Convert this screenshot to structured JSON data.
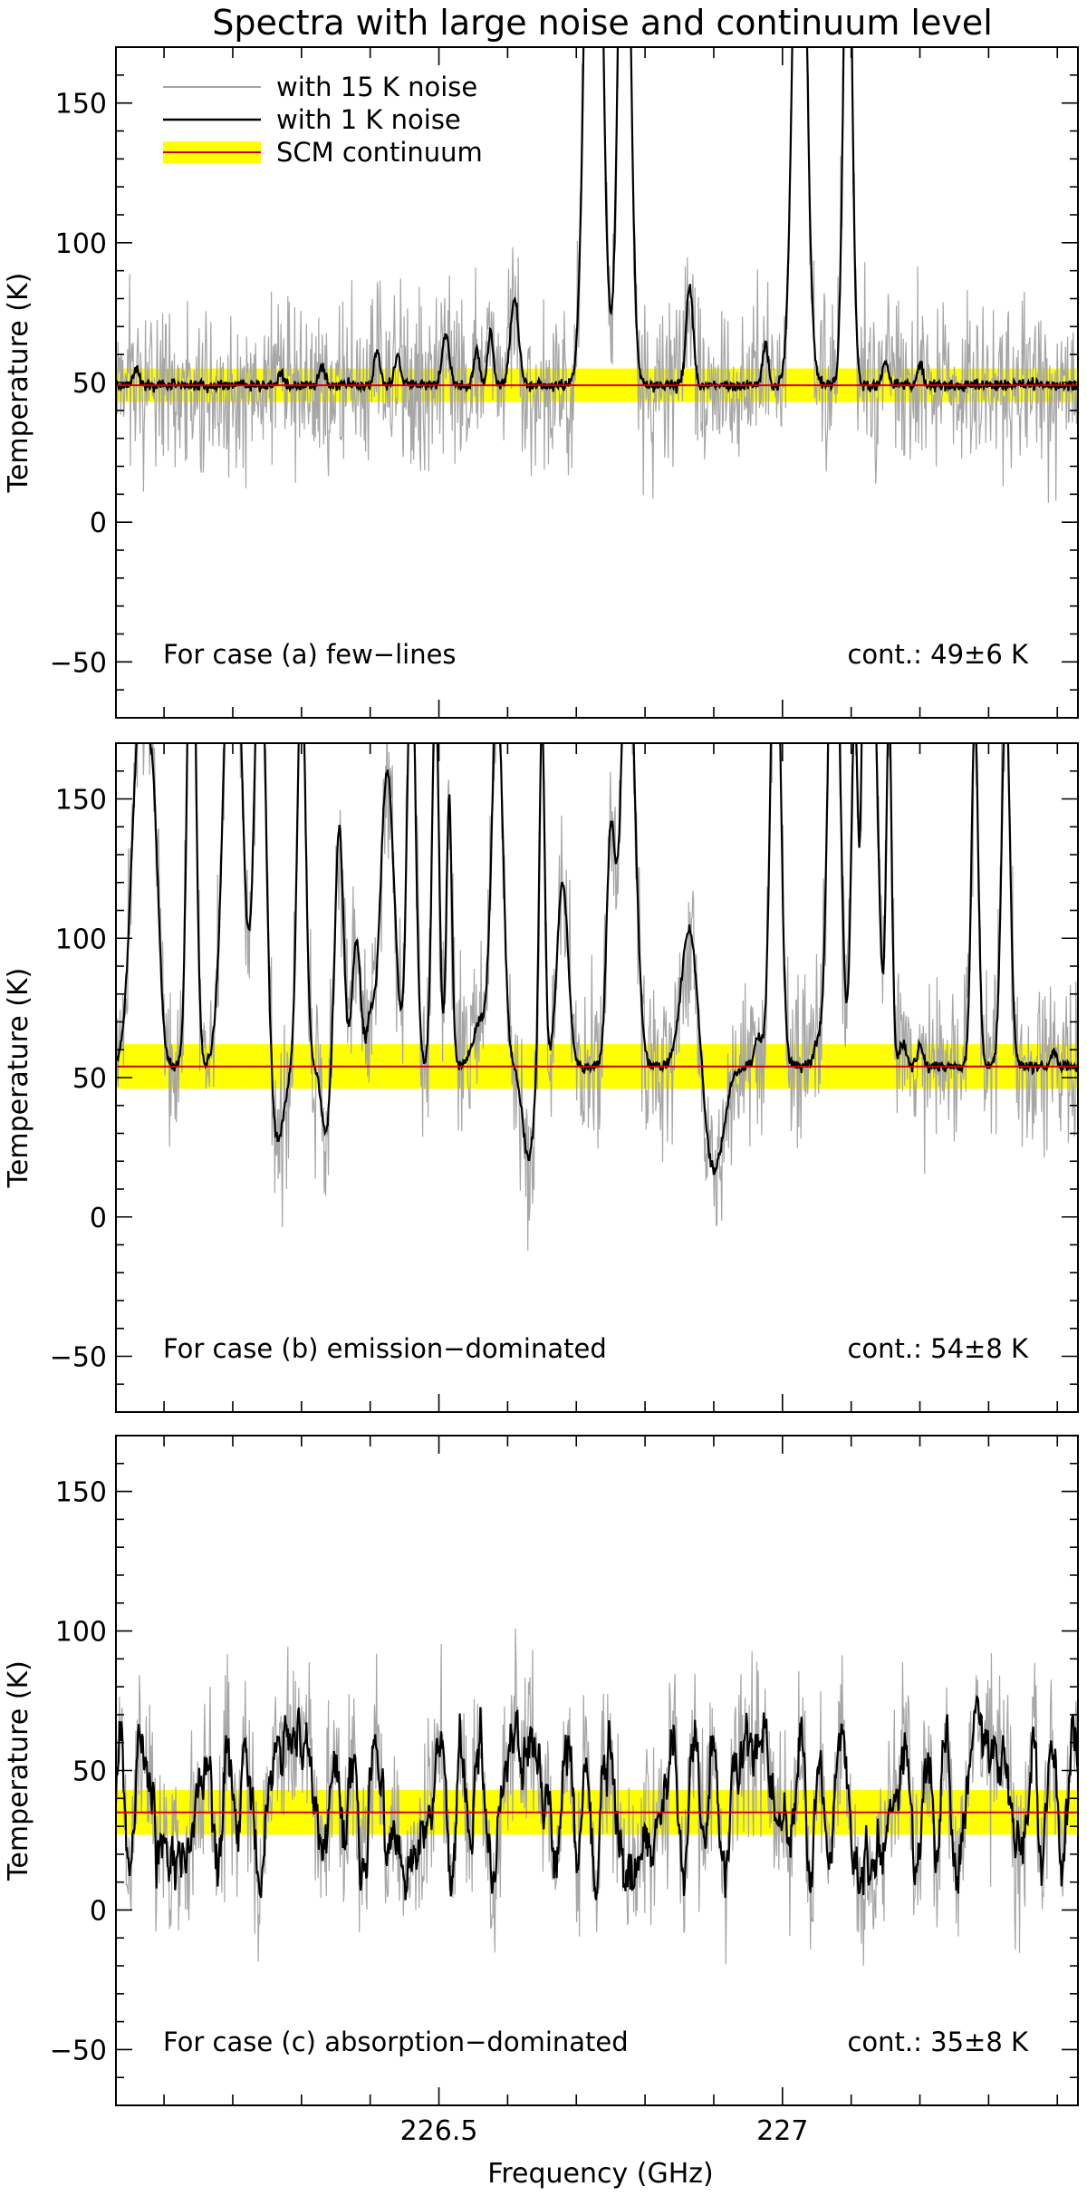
{
  "figure": {
    "title": "Spectra with large noise and continuum level",
    "xlabel": "Frequency (GHz)"
  },
  "colors": {
    "noise15": "#a6a6a6",
    "noise1": "#000000",
    "continuum_band": "#ffff00",
    "continuum_line": "#d40000"
  },
  "chart_data": [
    {
      "type": "line",
      "case_label": "For case (a) few−lines",
      "cont_label": "cont.: 49±6 K",
      "continuum": 49,
      "continuum_unc": 6,
      "ylabel": "Temperature (K)",
      "xlim": [
        226.03,
        227.43
      ],
      "ylim": [
        -70,
        170
      ],
      "yticks": [
        -50,
        0,
        50,
        100,
        150
      ],
      "ytick_labels": [
        "−50",
        "0",
        "50",
        "100",
        "150"
      ],
      "legend": {
        "placement": "top-left",
        "entries": [
          "with 15 K noise",
          "with 1 K noise",
          "SCM continuum"
        ]
      },
      "lines": [
        {
          "x": 226.06,
          "peak": 55,
          "w": 0.004
        },
        {
          "x": 226.27,
          "peak": 54,
          "w": 0.004
        },
        {
          "x": 226.33,
          "peak": 56,
          "w": 0.004
        },
        {
          "x": 226.41,
          "peak": 62,
          "w": 0.004
        },
        {
          "x": 226.44,
          "peak": 60,
          "w": 0.004
        },
        {
          "x": 226.51,
          "peak": 68,
          "w": 0.005
        },
        {
          "x": 226.555,
          "peak": 62,
          "w": 0.004
        },
        {
          "x": 226.575,
          "peak": 68,
          "w": 0.004
        },
        {
          "x": 226.61,
          "peak": 80,
          "w": 0.006
        },
        {
          "x": 226.725,
          "peak": 400,
          "w": 0.01
        },
        {
          "x": 226.77,
          "peak": 300,
          "w": 0.008
        },
        {
          "x": 226.865,
          "peak": 84,
          "w": 0.005
        },
        {
          "x": 226.975,
          "peak": 64,
          "w": 0.004
        },
        {
          "x": 227.025,
          "peak": 300,
          "w": 0.009
        },
        {
          "x": 227.095,
          "peak": 250,
          "w": 0.006
        },
        {
          "x": 227.15,
          "peak": 57,
          "w": 0.004
        },
        {
          "x": 227.2,
          "peak": 57,
          "w": 0.004
        }
      ]
    },
    {
      "type": "line",
      "case_label": "For case (b) emission−dominated",
      "cont_label": "cont.: 54±8 K",
      "continuum": 54,
      "continuum_unc": 8,
      "ylabel": "Temperature (K)",
      "xlim": [
        226.03,
        227.43
      ],
      "ylim": [
        -70,
        170
      ],
      "yticks": [
        -50,
        0,
        50,
        100,
        150
      ],
      "ytick_labels": [
        "−50",
        "0",
        "50",
        "100",
        "150"
      ],
      "lines": [
        {
          "x": 226.065,
          "peak": 180,
          "w": 0.012
        },
        {
          "x": 226.085,
          "peak": 125,
          "w": 0.008
        },
        {
          "x": 226.14,
          "peak": 250,
          "w": 0.006
        },
        {
          "x": 226.2,
          "peak": 250,
          "w": 0.012
        },
        {
          "x": 226.24,
          "peak": 220,
          "w": 0.008
        },
        {
          "x": 226.265,
          "peak": 27,
          "w": 0.01
        },
        {
          "x": 226.3,
          "peak": 200,
          "w": 0.006
        },
        {
          "x": 226.335,
          "peak": 30,
          "w": 0.006
        },
        {
          "x": 226.355,
          "peak": 140,
          "w": 0.006
        },
        {
          "x": 226.38,
          "peak": 100,
          "w": 0.006
        },
        {
          "x": 226.4,
          "peak": 70,
          "w": 0.005
        },
        {
          "x": 226.425,
          "peak": 160,
          "w": 0.01
        },
        {
          "x": 226.46,
          "peak": 210,
          "w": 0.006
        },
        {
          "x": 226.495,
          "peak": 190,
          "w": 0.005
        },
        {
          "x": 226.515,
          "peak": 150,
          "w": 0.004
        },
        {
          "x": 226.56,
          "peak": 70,
          "w": 0.01
        },
        {
          "x": 226.585,
          "peak": 190,
          "w": 0.008
        },
        {
          "x": 226.63,
          "peak": 21,
          "w": 0.008
        },
        {
          "x": 226.65,
          "peak": 180,
          "w": 0.004
        },
        {
          "x": 226.68,
          "peak": 120,
          "w": 0.008
        },
        {
          "x": 226.75,
          "peak": 135,
          "w": 0.006
        },
        {
          "x": 226.775,
          "peak": 220,
          "w": 0.01
        },
        {
          "x": 226.865,
          "peak": 105,
          "w": 0.012
        },
        {
          "x": 226.9,
          "peak": 16,
          "w": 0.014
        },
        {
          "x": 226.965,
          "peak": 65,
          "w": 0.005
        },
        {
          "x": 226.99,
          "peak": 240,
          "w": 0.007
        },
        {
          "x": 227.05,
          "peak": 62,
          "w": 0.005
        },
        {
          "x": 227.075,
          "peak": 260,
          "w": 0.008
        },
        {
          "x": 227.105,
          "peak": 180,
          "w": 0.005
        },
        {
          "x": 227.12,
          "peak": 200,
          "w": 0.004
        },
        {
          "x": 227.13,
          "peak": 220,
          "w": 0.008
        },
        {
          "x": 227.155,
          "peak": 180,
          "w": 0.004
        },
        {
          "x": 227.175,
          "peak": 62,
          "w": 0.005
        },
        {
          "x": 227.2,
          "peak": 62,
          "w": 0.004
        },
        {
          "x": 227.28,
          "peak": 180,
          "w": 0.005
        },
        {
          "x": 227.325,
          "peak": 190,
          "w": 0.006
        },
        {
          "x": 227.395,
          "peak": 60,
          "w": 0.004
        }
      ]
    },
    {
      "type": "line",
      "case_label": "For case (c) absorption−dominated",
      "cont_label": "cont.: 35±8 K",
      "continuum": 35,
      "continuum_unc": 8,
      "ylabel": "Temperature (K)",
      "xlim": [
        226.03,
        227.43
      ],
      "ylim": [
        -70,
        170
      ],
      "yticks": [
        -50,
        0,
        50,
        100,
        150
      ],
      "ytick_labels": [
        "−50",
        "0",
        "50",
        "100",
        "150"
      ],
      "xticks": [
        226.5,
        227
      ],
      "xtick_labels": [
        "226.5",
        "227"
      ],
      "range": [
        5,
        82
      ]
    }
  ]
}
